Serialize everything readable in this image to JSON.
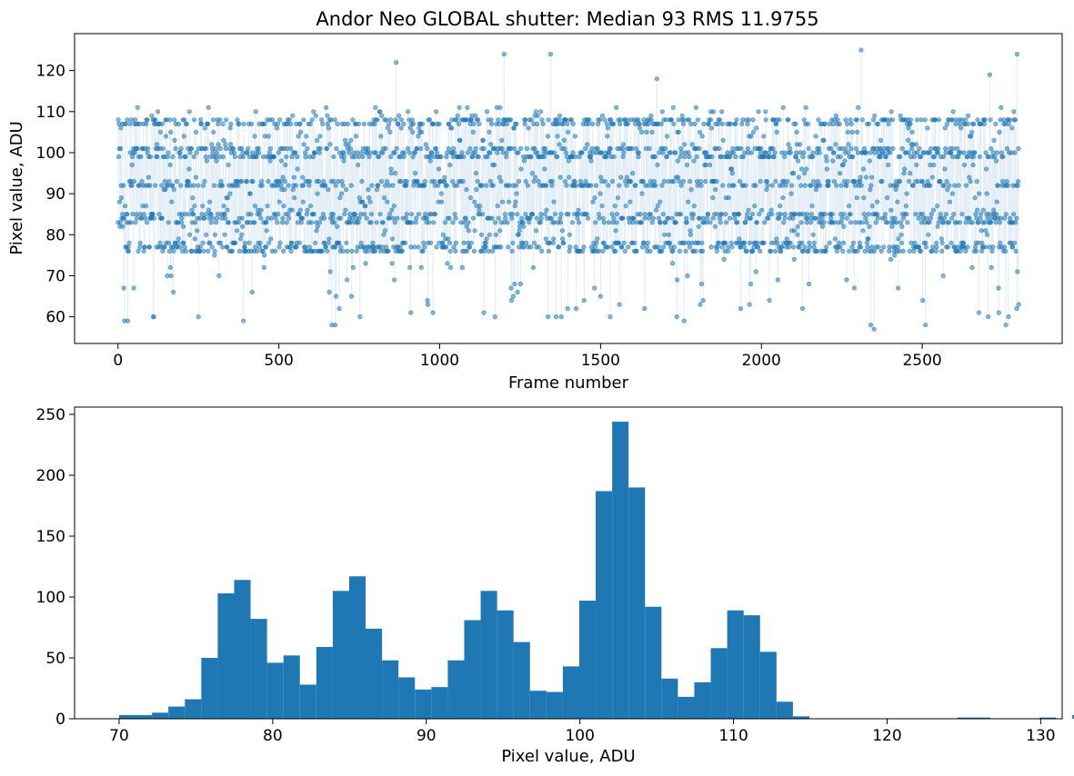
{
  "chart_data": [
    {
      "type": "scatter",
      "title": "Andor Neo GLOBAL shutter: Median 93 RMS 11.9755",
      "xlabel": "Frame number",
      "ylabel": "Pixel value, ADU",
      "xlim": [
        -135,
        2935
      ],
      "ylim": [
        53.5,
        129
      ],
      "xticks": [
        0,
        500,
        1000,
        1500,
        2000,
        2500
      ],
      "yticks": [
        60,
        70,
        80,
        90,
        100,
        110,
        120
      ],
      "grid": false,
      "series_style": "points connected by faint line",
      "color": "#1f77b4",
      "frame_count": 2800,
      "cluster_levels": [
        76,
        77,
        78,
        83,
        84,
        85,
        92,
        93,
        99,
        100,
        101,
        107,
        108
      ],
      "outliers": [
        {
          "x": 20,
          "y": 59
        },
        {
          "x": 30,
          "y": 59
        },
        {
          "x": 110,
          "y": 60
        },
        {
          "x": 250,
          "y": 60
        },
        {
          "x": 390,
          "y": 59
        },
        {
          "x": 665,
          "y": 58
        },
        {
          "x": 675,
          "y": 58
        },
        {
          "x": 865,
          "y": 122
        },
        {
          "x": 910,
          "y": 61
        },
        {
          "x": 1200,
          "y": 124
        },
        {
          "x": 1345,
          "y": 124
        },
        {
          "x": 1530,
          "y": 60
        },
        {
          "x": 1675,
          "y": 118
        },
        {
          "x": 1760,
          "y": 59
        },
        {
          "x": 2310,
          "y": 125
        },
        {
          "x": 2340,
          "y": 58
        },
        {
          "x": 2350,
          "y": 57
        },
        {
          "x": 2510,
          "y": 58
        },
        {
          "x": 2710,
          "y": 119
        },
        {
          "x": 2760,
          "y": 58
        },
        {
          "x": 2795,
          "y": 124
        },
        {
          "x": 2800,
          "y": 63
        }
      ]
    },
    {
      "type": "bar",
      "title": "",
      "xlabel": "Pixel value, ADU",
      "ylabel": "",
      "xlim": [
        67.1,
        131.4
      ],
      "ylim": [
        0,
        256
      ],
      "xticks": [
        70,
        80,
        90,
        100,
        110,
        120,
        130
      ],
      "yticks": [
        0,
        50,
        100,
        150,
        200,
        250
      ],
      "grid": false,
      "color": "#1f77b4",
      "bin_width": 1.07,
      "bin_start": 70,
      "values": [
        3,
        3,
        5,
        10,
        16,
        50,
        103,
        114,
        82,
        46,
        52,
        28,
        59,
        105,
        117,
        74,
        48,
        34,
        24,
        26,
        48,
        81,
        105,
        89,
        63,
        23,
        22,
        43,
        97,
        187,
        244,
        190,
        92,
        33,
        18,
        30,
        58,
        89,
        85,
        55,
        14,
        2,
        0,
        0,
        0,
        0,
        0,
        0,
        0,
        0,
        0,
        1,
        1,
        0,
        0,
        0,
        1,
        0,
        3,
        1,
        0
      ]
    }
  ]
}
